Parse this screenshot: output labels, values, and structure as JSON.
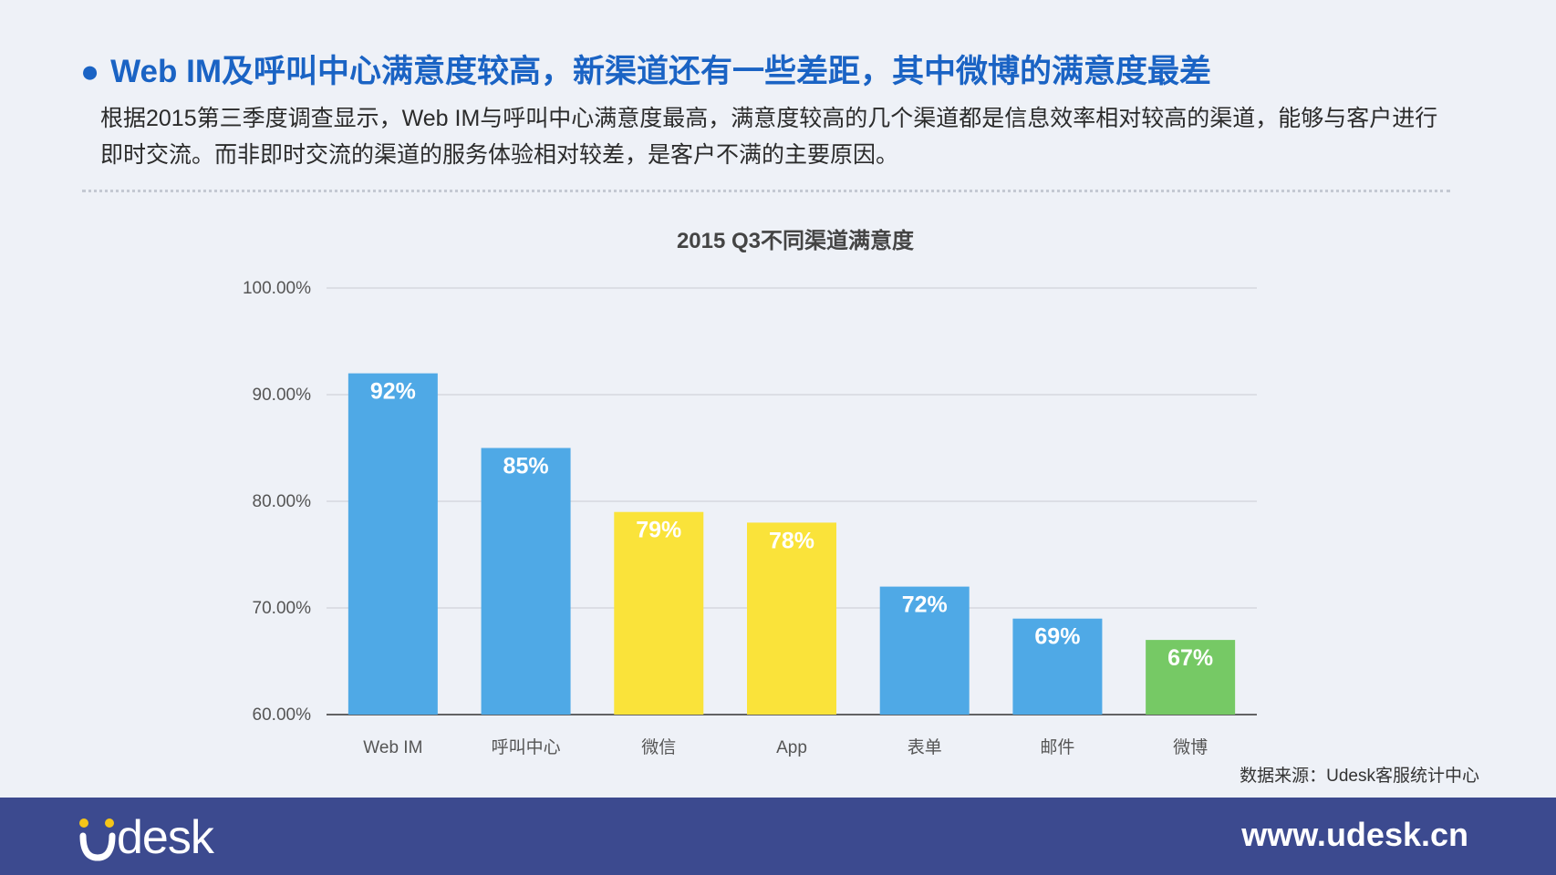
{
  "headline": "Web IM及呼叫中心满意度较高，新渠道还有一些差距，其中微博的满意度最差",
  "intro": "根据2015第三季度调查显示，Web IM与呼叫中心满意度最高，满意度较高的几个渠道都是信息效率相对较高的渠道，能够与客户进行即时交流。而非即时交流的渠道的服务体验相对较差，是客户不满的主要原因。",
  "source": "数据来源：Udesk客服统计中心",
  "footer": {
    "logo_text": "desk",
    "site": "www.udesk.cn"
  },
  "colors": {
    "headline": "#1a63c4",
    "footer": "#3c4a8f",
    "blue": "#4fa9e6",
    "yellow": "#fae33a",
    "green": "#76c965",
    "logo_yellow": "#f5c518"
  },
  "chart_data": {
    "type": "bar",
    "title": "2015 Q3不同渠道满意度",
    "categories": [
      "Web IM",
      "呼叫中心",
      "微信",
      "App",
      "表单",
      "邮件",
      "微博"
    ],
    "values": [
      92,
      85,
      79,
      78,
      72,
      69,
      67
    ],
    "value_labels": [
      "92%",
      "85%",
      "79%",
      "78%",
      "72%",
      "69%",
      "67%"
    ],
    "bar_colors": [
      "#4fa9e6",
      "#4fa9e6",
      "#fae33a",
      "#fae33a",
      "#4fa9e6",
      "#4fa9e6",
      "#76c965"
    ],
    "yticks": [
      60,
      70,
      80,
      90,
      100
    ],
    "ytick_labels": [
      "60.00%",
      "70.00%",
      "80.00%",
      "90.00%",
      "100.00%"
    ],
    "ylim": [
      60,
      100
    ],
    "xlabel": "",
    "ylabel": "",
    "grid": true,
    "legend": "none"
  }
}
